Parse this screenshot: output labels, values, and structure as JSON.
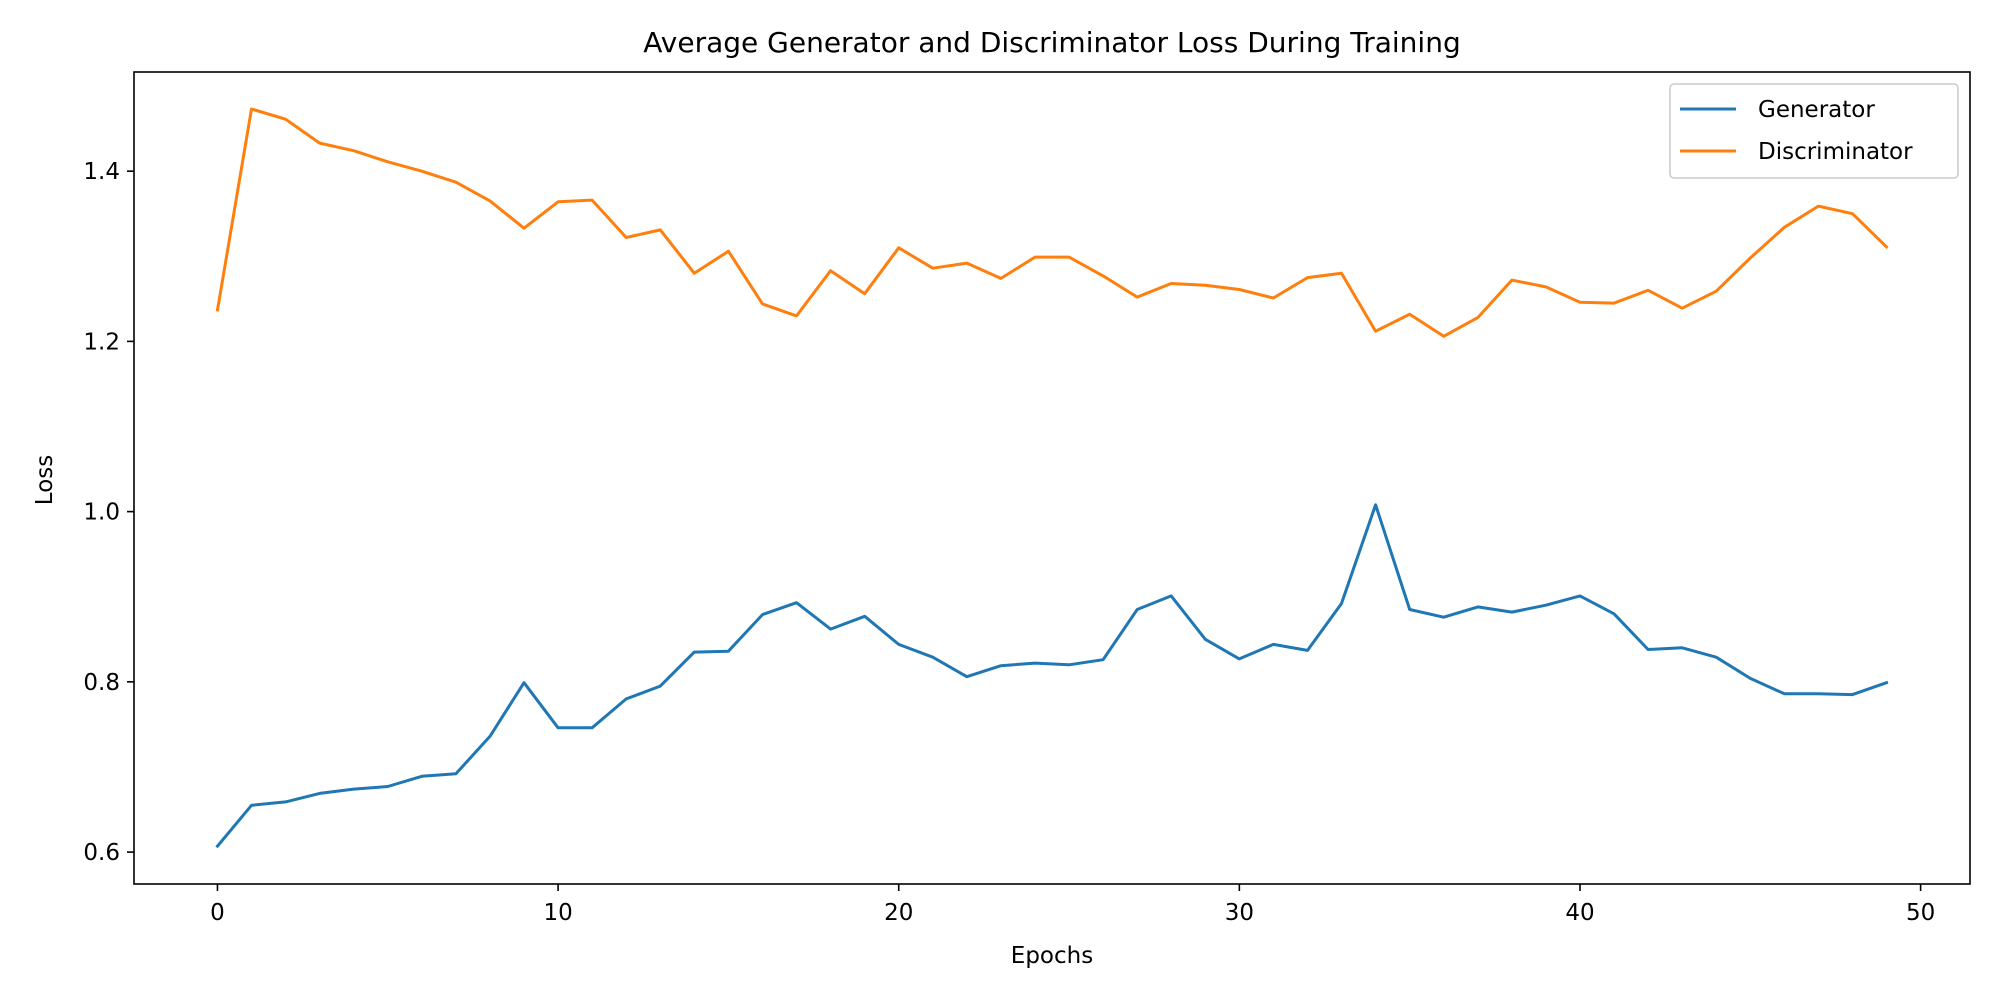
{
  "chart_data": {
    "type": "line",
    "title": "Average Generator and Discriminator Loss During Training",
    "xlabel": "Epochs",
    "ylabel": "Loss",
    "xlim": [
      -2.45,
      51.45
    ],
    "ylim": [
      0.5625,
      1.5165
    ],
    "xticks": [
      0,
      10,
      20,
      30,
      40,
      50
    ],
    "yticks": [
      0.6,
      0.8,
      1.0,
      1.2,
      1.4
    ],
    "ytick_labels": [
      "0.6",
      "0.8",
      "1.0",
      "1.2",
      "1.4"
    ],
    "grid": false,
    "legend_position": "top-right",
    "x": [
      0,
      1,
      2,
      3,
      4,
      5,
      6,
      7,
      8,
      9,
      10,
      11,
      12,
      13,
      14,
      15,
      16,
      17,
      18,
      19,
      20,
      21,
      22,
      23,
      24,
      25,
      26,
      27,
      28,
      29,
      30,
      31,
      32,
      33,
      34,
      35,
      36,
      37,
      38,
      39,
      40,
      41,
      42,
      43,
      44,
      45,
      46,
      47,
      48,
      49
    ],
    "series": [
      {
        "name": "Generator",
        "color": "#1f77b4",
        "values": [
          0.607,
          0.655,
          0.659,
          0.669,
          0.674,
          0.677,
          0.689,
          0.692,
          0.736,
          0.799,
          0.746,
          0.746,
          0.78,
          0.795,
          0.835,
          0.836,
          0.879,
          0.893,
          0.862,
          0.877,
          0.844,
          0.829,
          0.806,
          0.819,
          0.822,
          0.82,
          0.826,
          0.885,
          0.901,
          0.85,
          0.827,
          0.844,
          0.837,
          0.892,
          1.008,
          0.885,
          0.876,
          0.888,
          0.882,
          0.89,
          0.901,
          0.88,
          0.838,
          0.84,
          0.829,
          0.804,
          0.786,
          0.786,
          0.785,
          0.799
        ]
      },
      {
        "name": "Discriminator",
        "color": "#ff7f0e",
        "values": [
          1.237,
          1.473,
          1.461,
          1.433,
          1.424,
          1.411,
          1.4,
          1.387,
          1.365,
          1.333,
          1.364,
          1.366,
          1.322,
          1.331,
          1.28,
          1.306,
          1.244,
          1.23,
          1.283,
          1.256,
          1.31,
          1.286,
          1.292,
          1.274,
          1.299,
          1.299,
          1.277,
          1.252,
          1.268,
          1.266,
          1.261,
          1.251,
          1.275,
          1.28,
          1.212,
          1.232,
          1.206,
          1.228,
          1.272,
          1.264,
          1.246,
          1.245,
          1.26,
          1.239,
          1.259,
          1.298,
          1.334,
          1.359,
          1.35,
          1.311
        ]
      }
    ]
  }
}
